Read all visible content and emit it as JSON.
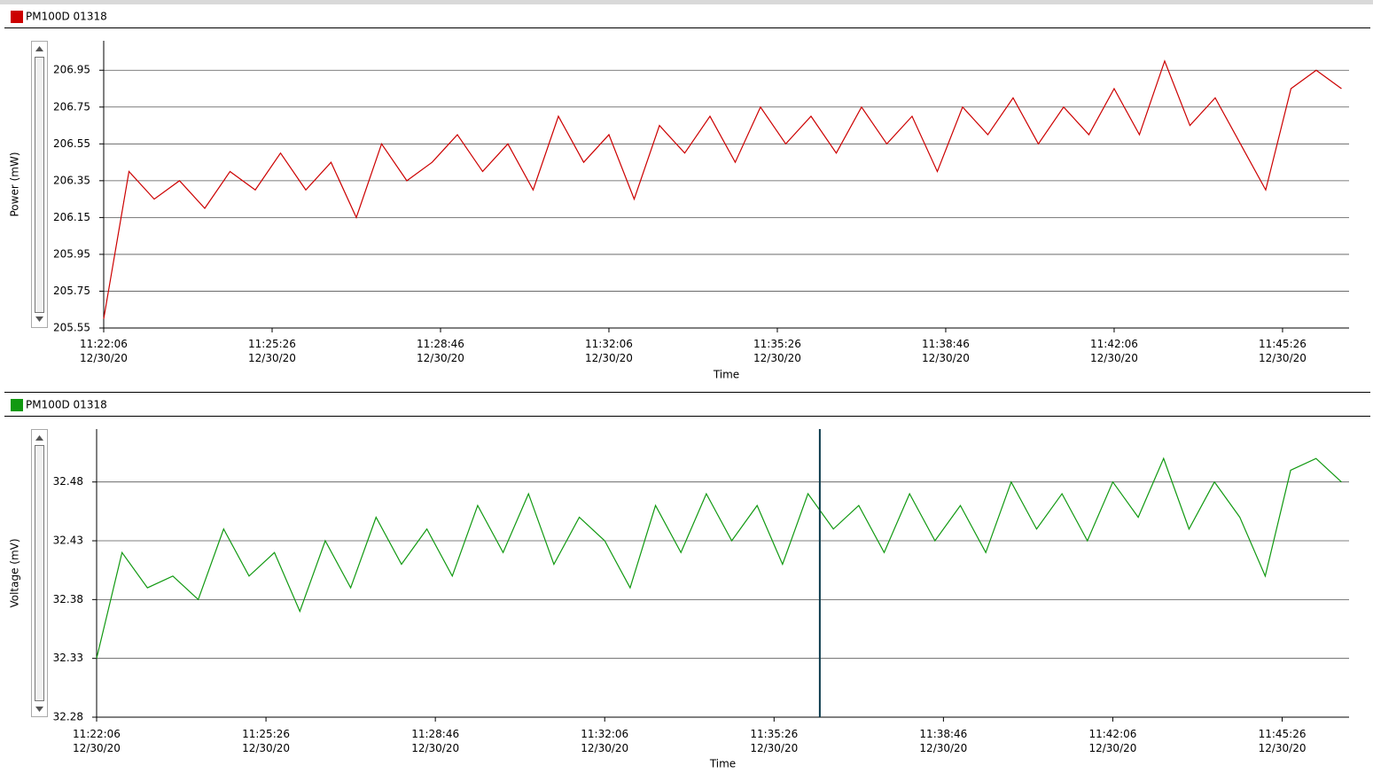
{
  "chart_data": [
    {
      "type": "line",
      "ylabel": "Power (mW)",
      "xlabel": "Time",
      "series": [
        {
          "name": "PM100D 01318",
          "color": "#cc0000",
          "values": [
            205.6,
            206.4,
            206.25,
            206.35,
            206.2,
            206.4,
            206.3,
            206.5,
            206.3,
            206.45,
            206.15,
            206.55,
            206.35,
            206.45,
            206.6,
            206.4,
            206.55,
            206.3,
            206.7,
            206.45,
            206.6,
            206.25,
            206.65,
            206.5,
            206.7,
            206.45,
            206.75,
            206.55,
            206.7,
            206.5,
            206.75,
            206.55,
            206.7,
            206.4,
            206.75,
            206.6,
            206.8,
            206.55,
            206.75,
            206.6,
            206.85,
            206.6,
            207.0,
            206.65,
            206.8,
            206.55,
            206.3,
            206.85,
            206.95,
            206.85
          ]
        }
      ],
      "x": [
        40926,
        40956,
        40986,
        41016,
        41046,
        41076,
        41106,
        41136,
        41166,
        41196,
        41226,
        41256,
        41286,
        41316,
        41346,
        41376,
        41406,
        41436,
        41466,
        41496,
        41526,
        41556,
        41586,
        41616,
        41646,
        41676,
        41706,
        41736,
        41766,
        41796,
        41826,
        41856,
        41886,
        41916,
        41946,
        41976,
        42006,
        42036,
        42066,
        42096,
        42126,
        42156,
        42186,
        42216,
        42246,
        42276,
        42306,
        42336,
        42366,
        42396
      ],
      "xlim": [
        40926,
        42405
      ],
      "xticks": [
        {
          "value": 40926,
          "label": "11:22:06\n12/30/20"
        },
        {
          "value": 41126,
          "label": "11:25:26\n12/30/20"
        },
        {
          "value": 41326,
          "label": "11:28:46\n12/30/20"
        },
        {
          "value": 41526,
          "label": "11:32:06\n12/30/20"
        },
        {
          "value": 41726,
          "label": "11:35:26\n12/30/20"
        },
        {
          "value": 41926,
          "label": "11:38:46\n12/30/20"
        },
        {
          "value": 42126,
          "label": "11:42:06\n12/30/20"
        },
        {
          "value": 42326,
          "label": "11:45:26\n12/30/20"
        }
      ],
      "ylim": [
        205.55,
        207.11
      ],
      "yticks": [
        205.55,
        205.75,
        205.95,
        206.15,
        206.35,
        206.55,
        206.75,
        206.95
      ],
      "grid": true
    },
    {
      "type": "line",
      "ylabel": "Voltage (mV)",
      "xlabel": "Time",
      "series": [
        {
          "name": "PM100D 01318",
          "color": "#119911",
          "values": [
            32.33,
            32.42,
            32.39,
            32.4,
            32.38,
            32.44,
            32.4,
            32.42,
            32.37,
            32.43,
            32.39,
            32.45,
            32.41,
            32.44,
            32.4,
            32.46,
            32.42,
            32.47,
            32.41,
            32.45,
            32.43,
            32.39,
            32.46,
            32.42,
            32.47,
            32.43,
            32.46,
            32.41,
            32.47,
            32.44,
            32.46,
            32.42,
            32.47,
            32.43,
            32.46,
            32.42,
            32.48,
            32.44,
            32.47,
            32.43,
            32.48,
            32.45,
            32.5,
            32.44,
            32.48,
            32.45,
            32.4,
            32.49,
            32.5,
            32.48
          ]
        }
      ],
      "x": [
        40926,
        40956,
        40986,
        41016,
        41046,
        41076,
        41106,
        41136,
        41166,
        41196,
        41226,
        41256,
        41286,
        41316,
        41346,
        41376,
        41406,
        41436,
        41466,
        41496,
        41526,
        41556,
        41586,
        41616,
        41646,
        41676,
        41706,
        41736,
        41766,
        41796,
        41826,
        41856,
        41886,
        41916,
        41946,
        41976,
        42006,
        42036,
        42066,
        42096,
        42126,
        42156,
        42186,
        42216,
        42246,
        42276,
        42306,
        42336,
        42366,
        42396
      ],
      "xlim": [
        40926,
        42405
      ],
      "xticks": [
        {
          "value": 40926,
          "label": "11:22:06\n12/30/20"
        },
        {
          "value": 41126,
          "label": "11:25:26\n12/30/20"
        },
        {
          "value": 41326,
          "label": "11:28:46\n12/30/20"
        },
        {
          "value": 41526,
          "label": "11:32:06\n12/30/20"
        },
        {
          "value": 41726,
          "label": "11:35:26\n12/30/20"
        },
        {
          "value": 41926,
          "label": "11:38:46\n12/30/20"
        },
        {
          "value": 42126,
          "label": "11:42:06\n12/30/20"
        },
        {
          "value": 42326,
          "label": "11:45:26\n12/30/20"
        }
      ],
      "ylim": [
        32.28,
        32.525
      ],
      "yticks": [
        32.28,
        32.33,
        32.38,
        32.43,
        32.48
      ],
      "grid": true,
      "cursor_x": 41780
    }
  ]
}
